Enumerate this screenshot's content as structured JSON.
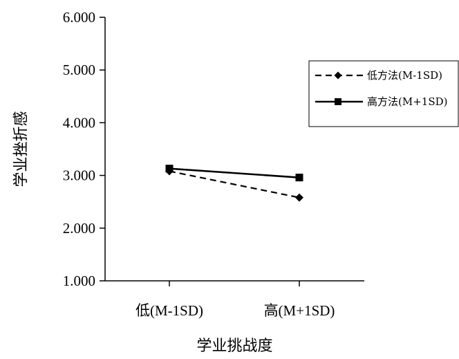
{
  "chart_data": {
    "type": "line",
    "title": "",
    "xlabel": "学业挑战度",
    "ylabel": "学业挫折感",
    "categories": [
      "低(M-1SD)",
      "高(M+1SD)"
    ],
    "ylim": [
      1.0,
      6.0
    ],
    "yticks": [
      "1.000",
      "2.000",
      "3.000",
      "4.000",
      "5.000",
      "6.000"
    ],
    "ytick_values": [
      1,
      2,
      3,
      4,
      5,
      6
    ],
    "series": [
      {
        "name": "低方法(M-1SD)",
        "values": [
          3.08,
          2.58
        ],
        "line_style": "dashed",
        "marker": "diamond"
      },
      {
        "name": "高方法(M+1SD)",
        "values": [
          3.13,
          2.96
        ],
        "line_style": "solid",
        "marker": "square"
      }
    ],
    "legend": {
      "placement": "right"
    },
    "grid": false
  }
}
